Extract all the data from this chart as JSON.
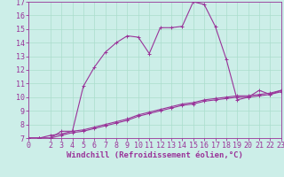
{
  "title": "",
  "xlabel": "Windchill (Refroidissement éolien,°C)",
  "ylabel": "",
  "background_color": "#cceee8",
  "line_color": "#993399",
  "grid_color": "#aaddcc",
  "xlim": [
    0,
    23
  ],
  "ylim": [
    7,
    17
  ],
  "yticks": [
    7,
    8,
    9,
    10,
    11,
    12,
    13,
    14,
    15,
    16,
    17
  ],
  "xticks": [
    0,
    2,
    3,
    4,
    5,
    6,
    7,
    8,
    9,
    10,
    11,
    12,
    13,
    14,
    15,
    16,
    17,
    18,
    19,
    20,
    21,
    22,
    23
  ],
  "line1_x": [
    0,
    1,
    2,
    3,
    4,
    5,
    6,
    7,
    8,
    9,
    10,
    11,
    12,
    13,
    14,
    15,
    16,
    17,
    18,
    19,
    20,
    21,
    22,
    23
  ],
  "line1_y": [
    7.0,
    7.0,
    7.0,
    7.5,
    7.5,
    10.8,
    12.2,
    13.3,
    14.0,
    14.5,
    14.4,
    13.2,
    15.1,
    15.1,
    15.2,
    17.0,
    16.8,
    15.2,
    12.8,
    9.8,
    10.0,
    10.5,
    10.2,
    10.5
  ],
  "line2_x": [
    0,
    1,
    2,
    3,
    4,
    5,
    6,
    7,
    8,
    9,
    10,
    11,
    12,
    13,
    14,
    15,
    16,
    17,
    18,
    19,
    20,
    21,
    22,
    23
  ],
  "line2_y": [
    7.0,
    7.0,
    7.0,
    7.2,
    7.4,
    7.5,
    7.7,
    7.9,
    8.1,
    8.3,
    8.6,
    8.8,
    9.0,
    9.2,
    9.4,
    9.5,
    9.7,
    9.8,
    9.9,
    10.0,
    10.0,
    10.1,
    10.2,
    10.4
  ],
  "line3_x": [
    0,
    1,
    2,
    3,
    4,
    5,
    6,
    7,
    8,
    9,
    10,
    11,
    12,
    13,
    14,
    15,
    16,
    17,
    18,
    19,
    20,
    21,
    22,
    23
  ],
  "line3_y": [
    7.0,
    7.0,
    7.2,
    7.3,
    7.5,
    7.6,
    7.8,
    8.0,
    8.2,
    8.4,
    8.7,
    8.9,
    9.1,
    9.3,
    9.5,
    9.6,
    9.8,
    9.9,
    10.0,
    10.1,
    10.1,
    10.2,
    10.3,
    10.5
  ],
  "xlabel_fontsize": 6.5,
  "tick_fontsize": 6.0,
  "marker_size": 3.0,
  "line_width": 0.8
}
